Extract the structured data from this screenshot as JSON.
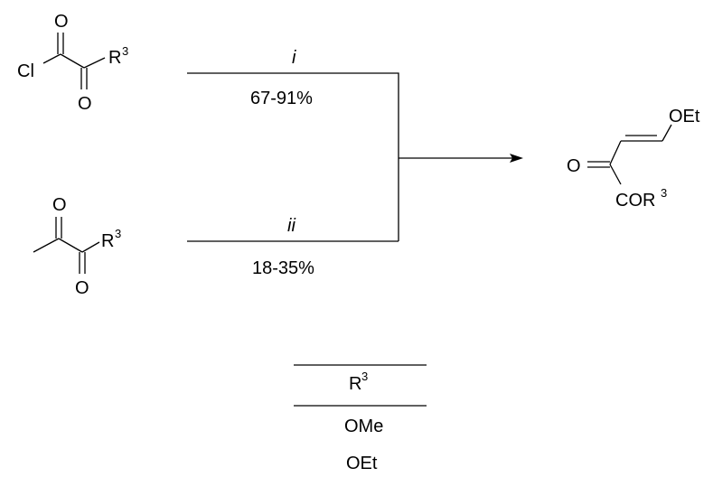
{
  "reaction": {
    "reactant_1": {
      "atom_o_top": "O",
      "atom_cl": "Cl",
      "atom_o_bottom": "O",
      "r_group": "R",
      "r_sup": "3"
    },
    "reactant_2": {
      "atom_o_top": "O",
      "atom_o_bottom": "O",
      "r_group": "R",
      "r_sup": "3"
    },
    "route_1": {
      "reagent": "i",
      "yield": "67-91%"
    },
    "route_2": {
      "reagent": "ii",
      "yield": "18-35%"
    },
    "product": {
      "atom_o": "O",
      "oet": "OEt",
      "cor": "COR",
      "cor_sup": "3"
    }
  },
  "table": {
    "header": "R",
    "header_sup": "3",
    "rows": [
      "OMe",
      "OEt"
    ]
  }
}
